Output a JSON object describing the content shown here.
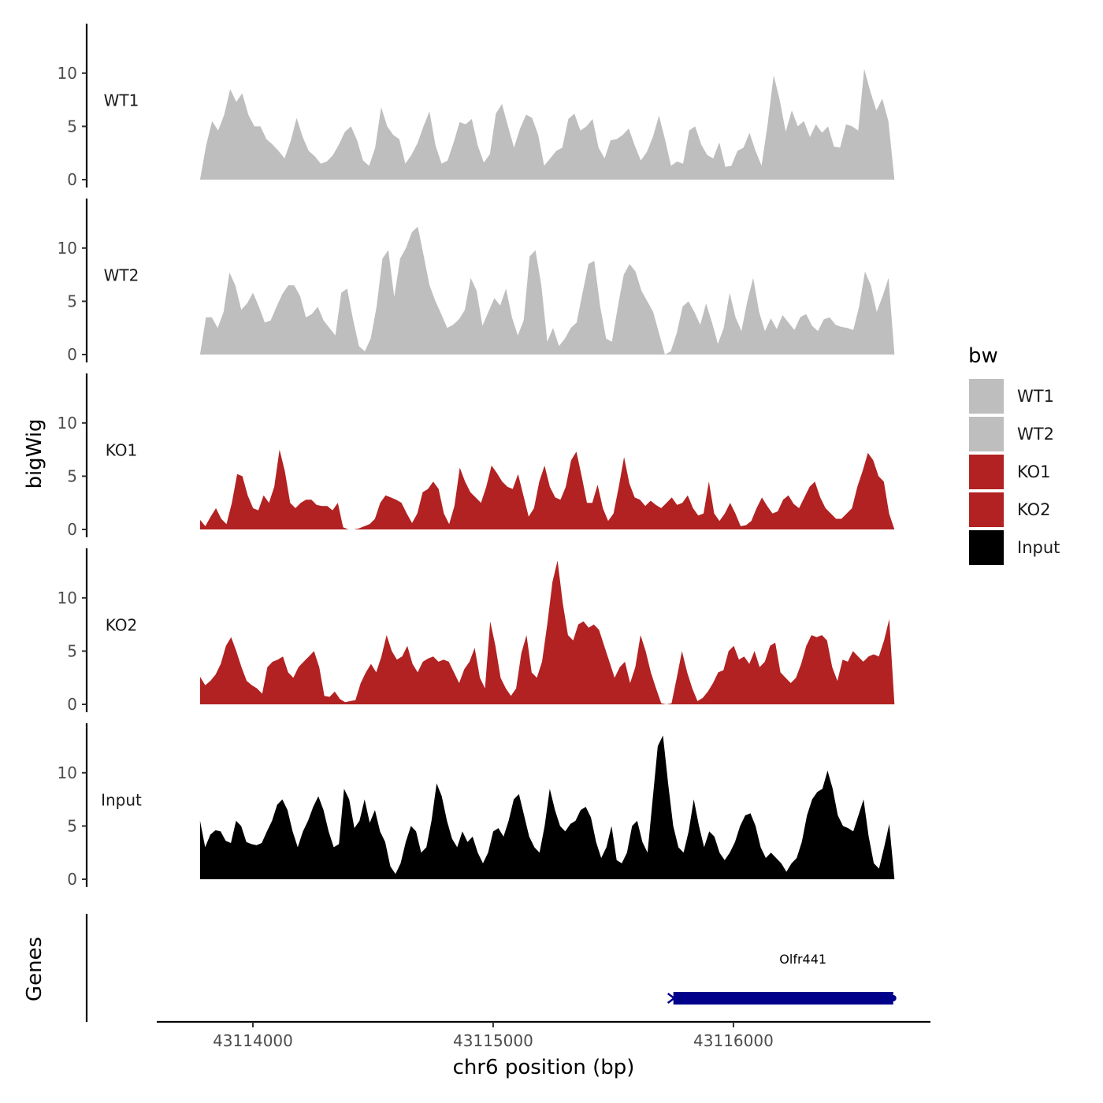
{
  "chart_data": {
    "type": "area",
    "xlabel": "chr6 position (bp)",
    "ylabel": "bigWig",
    "genes_label": "Genes",
    "xlim": [
      43113600,
      43116820
    ],
    "x_range": [
      43113780,
      43116670
    ],
    "x_ticks": [
      43114000,
      43115000,
      43116000
    ],
    "x_tick_labels": [
      "43114000",
      "43115000",
      "43116000"
    ],
    "ylim": [
      0,
      14.5
    ],
    "y_ticks": [
      0,
      5,
      10
    ],
    "y_tick_labels": [
      "0",
      "5",
      "10"
    ],
    "legend": {
      "title": "bw",
      "entries": [
        {
          "label": "WT1",
          "color": "#bebebe"
        },
        {
          "label": "WT2",
          "color": "#bebebe"
        },
        {
          "label": "KO1",
          "color": "#b22222"
        },
        {
          "label": "KO2",
          "color": "#b22222"
        },
        {
          "label": "Input",
          "color": "#000000"
        }
      ]
    },
    "series": [
      {
        "name": "WT1",
        "color": "#bebebe",
        "values": [
          0,
          3.2,
          5.5,
          4.6,
          6.1,
          8.5,
          7.3,
          8.1,
          6.1,
          5.0,
          5.0,
          3.8,
          3.3,
          2.7,
          2.0,
          3.6,
          5.8,
          4.0,
          2.7,
          2.2,
          1.5,
          1.7,
          2.3,
          3.3,
          4.5,
          5.0,
          3.7,
          1.8,
          1.3,
          3.0,
          6.8,
          5.0,
          4.2,
          3.8,
          1.5,
          2.3,
          3.4,
          5.0,
          6.4,
          3.2,
          1.5,
          1.8,
          3.5,
          5.4,
          5.2,
          5.7,
          3.2,
          1.6,
          2.4,
          6.2,
          7.1,
          5.0,
          3.0,
          4.8,
          6.1,
          5.8,
          4.2,
          1.3,
          2.0,
          2.7,
          3.0,
          5.7,
          6.2,
          4.6,
          5.0,
          5.7,
          3.0,
          2.0,
          3.7,
          3.8,
          4.2,
          4.8,
          3.2,
          1.8,
          2.6,
          4.0,
          6.0,
          3.8,
          1.3,
          1.7,
          1.5,
          4.6,
          5.0,
          3.3,
          2.3,
          2.0,
          3.5,
          1.2,
          1.3,
          2.7,
          3.0,
          4.4,
          2.7,
          1.3,
          5.2,
          9.8,
          7.5,
          4.5,
          6.5,
          5.0,
          5.5,
          4.0,
          5.2,
          4.4,
          5.0,
          3.1,
          3.0,
          5.2,
          5.0,
          4.6,
          10.4,
          8.3,
          6.5,
          7.6,
          5.5,
          0
        ]
      },
      {
        "name": "WT2",
        "color": "#bebebe",
        "values": [
          0,
          3.5,
          3.5,
          2.5,
          4.0,
          7.7,
          6.5,
          4.2,
          4.8,
          5.8,
          4.5,
          3.0,
          3.2,
          4.5,
          5.7,
          6.5,
          6.5,
          5.5,
          3.5,
          3.8,
          4.5,
          3.2,
          2.5,
          1.8,
          5.8,
          6.2,
          3.3,
          0.8,
          0.3,
          1.5,
          4.5,
          9.0,
          9.8,
          5.4,
          9.0,
          10.0,
          11.5,
          12.0,
          9.3,
          6.5,
          5.0,
          3.8,
          2.5,
          2.8,
          3.3,
          4.2,
          7.2,
          6.0,
          2.7,
          4.0,
          5.3,
          4.6,
          6.2,
          3.5,
          1.8,
          3.2,
          9.2,
          9.8,
          6.5,
          1.2,
          2.5,
          0.8,
          1.5,
          2.5,
          3.0,
          5.8,
          8.5,
          8.8,
          4.5,
          1.5,
          1.2,
          4.5,
          7.5,
          8.5,
          7.8,
          6.0,
          5.0,
          4.0,
          2.0,
          0,
          0.3,
          2.0,
          4.5,
          5.0,
          4.0,
          2.8,
          4.8,
          3.0,
          1.0,
          2.5,
          5.8,
          3.5,
          2.2,
          5.0,
          7.2,
          4.0,
          2.2,
          3.4,
          2.4,
          3.7,
          3.0,
          2.3,
          3.5,
          3.8,
          2.7,
          2.2,
          3.3,
          3.5,
          2.8,
          2.6,
          2.5,
          2.3,
          4.5,
          7.8,
          6.5,
          4.0,
          5.5,
          7.2,
          0
        ]
      },
      {
        "name": "KO1",
        "color": "#b22222",
        "values": [
          0.9,
          0.3,
          1.2,
          2.0,
          1.0,
          0.5,
          2.5,
          5.2,
          5.0,
          3.2,
          2.0,
          1.8,
          3.2,
          2.5,
          4.0,
          7.5,
          5.5,
          2.5,
          2.0,
          2.5,
          2.8,
          2.8,
          2.3,
          2.2,
          2.2,
          1.8,
          2.5,
          0.2,
          0,
          0,
          0.1,
          0.3,
          0.5,
          1.0,
          2.5,
          3.2,
          3.0,
          2.8,
          2.5,
          1.5,
          0.6,
          1.5,
          3.5,
          3.8,
          4.5,
          3.8,
          1.5,
          0.5,
          2.2,
          5.8,
          4.5,
          3.5,
          3.0,
          2.5,
          4.0,
          6.0,
          5.3,
          4.5,
          4.0,
          3.8,
          5.2,
          3.2,
          1.2,
          2.0,
          4.5,
          6.0,
          4.0,
          3.0,
          2.8,
          4.0,
          6.5,
          7.3,
          5.0,
          2.5,
          2.5,
          4.2,
          2.0,
          0.8,
          1.5,
          4.0,
          6.8,
          4.3,
          3.0,
          2.8,
          2.2,
          2.7,
          2.3,
          2.0,
          2.5,
          3.0,
          2.3,
          2.5,
          3.2,
          2.0,
          1.3,
          1.5,
          4.5,
          1.5,
          0.8,
          1.5,
          2.5,
          1.5,
          0.3,
          0.4,
          0.8,
          2.0,
          3.0,
          2.2,
          1.5,
          1.7,
          2.8,
          3.2,
          2.4,
          2.0,
          3.0,
          4.0,
          4.5,
          3.0,
          2.0,
          1.5,
          1.0,
          1.0,
          1.5,
          2.0,
          4.0,
          5.5,
          7.2,
          6.5,
          5.0,
          4.5,
          1.5,
          0
        ]
      },
      {
        "name": "KO2",
        "color": "#b22222",
        "values": [
          2.6,
          1.8,
          2.2,
          2.8,
          3.8,
          5.5,
          6.3,
          5.0,
          3.5,
          2.2,
          1.8,
          1.5,
          1.0,
          3.5,
          4.0,
          4.2,
          4.5,
          3.0,
          2.5,
          3.5,
          4.0,
          4.5,
          5.0,
          3.5,
          0.8,
          0.7,
          1.2,
          0.5,
          0.2,
          0.3,
          0.4,
          2.0,
          3.0,
          3.8,
          3.0,
          4.5,
          6.5,
          5.0,
          4.2,
          4.5,
          5.5,
          3.8,
          3.0,
          4.0,
          4.3,
          4.5,
          4.0,
          4.2,
          4.0,
          3.0,
          2.0,
          3.3,
          4.0,
          5.3,
          2.5,
          1.5,
          7.8,
          5.5,
          2.5,
          1.5,
          0.8,
          1.5,
          4.8,
          6.5,
          3.0,
          2.5,
          4.0,
          7.5,
          11.5,
          13.5,
          9.5,
          6.5,
          6.0,
          7.5,
          7.8,
          7.2,
          7.5,
          7.0,
          5.5,
          4.0,
          2.5,
          3.5,
          4.0,
          2.0,
          3.5,
          6.5,
          5.0,
          3.0,
          1.5,
          0.1,
          0,
          0.1,
          2.5,
          5.0,
          3.0,
          1.5,
          0.3,
          0.6,
          1.2,
          2.0,
          3.0,
          3.2,
          5.0,
          5.5,
          4.2,
          4.5,
          3.8,
          5.0,
          3.5,
          4.0,
          5.5,
          5.8,
          3.0,
          2.5,
          2.0,
          2.5,
          3.8,
          5.5,
          6.5,
          6.3,
          6.5,
          6.0,
          3.5,
          2.2,
          4.2,
          4.0,
          5.0,
          4.5,
          4.0,
          4.5,
          4.7,
          4.5,
          6.0,
          8.0,
          0
        ]
      },
      {
        "name": "Input",
        "color": "#000000",
        "values": [
          5.5,
          3.0,
          4.2,
          4.6,
          4.5,
          3.6,
          3.4,
          5.5,
          5.0,
          3.5,
          3.3,
          3.2,
          3.4,
          4.5,
          5.5,
          7.0,
          7.5,
          6.5,
          4.5,
          3.0,
          4.5,
          5.5,
          6.8,
          7.8,
          6.5,
          4.5,
          3.0,
          3.3,
          8.5,
          7.5,
          4.8,
          5.5,
          7.5,
          5.3,
          6.5,
          4.5,
          3.5,
          1.2,
          0.5,
          1.5,
          3.5,
          5.0,
          4.5,
          2.5,
          3.0,
          5.5,
          9.0,
          7.8,
          5.5,
          3.8,
          3.0,
          4.5,
          3.5,
          4.0,
          2.5,
          1.5,
          2.5,
          4.5,
          4.8,
          4.0,
          5.5,
          7.5,
          8.0,
          6.0,
          4.0,
          3.0,
          2.5,
          5.0,
          8.5,
          6.5,
          5.0,
          4.5,
          5.2,
          5.5,
          6.5,
          6.8,
          5.8,
          3.5,
          2.0,
          3.0,
          5.0,
          1.8,
          1.5,
          2.5,
          5.0,
          5.5,
          3.5,
          2.5,
          7.5,
          12.5,
          13.5,
          9.0,
          5.0,
          3.0,
          2.5,
          4.5,
          7.5,
          5.0,
          3.0,
          4.5,
          4.0,
          2.5,
          1.8,
          2.5,
          3.5,
          5.0,
          6.0,
          6.2,
          5.0,
          3.0,
          2.0,
          2.5,
          2.0,
          1.5,
          0.7,
          1.5,
          2.0,
          3.5,
          6.0,
          7.5,
          8.2,
          8.5,
          10.2,
          8.5,
          6.0,
          5.0,
          4.8,
          4.5,
          6.0,
          7.5,
          4.0,
          1.5,
          1.0,
          3.0,
          5.2,
          0
        ]
      }
    ],
    "genes": [
      {
        "name": "Olfr441",
        "start": 43115750,
        "end": 43116665,
        "strand": "-",
        "color": "#00008b"
      }
    ]
  }
}
